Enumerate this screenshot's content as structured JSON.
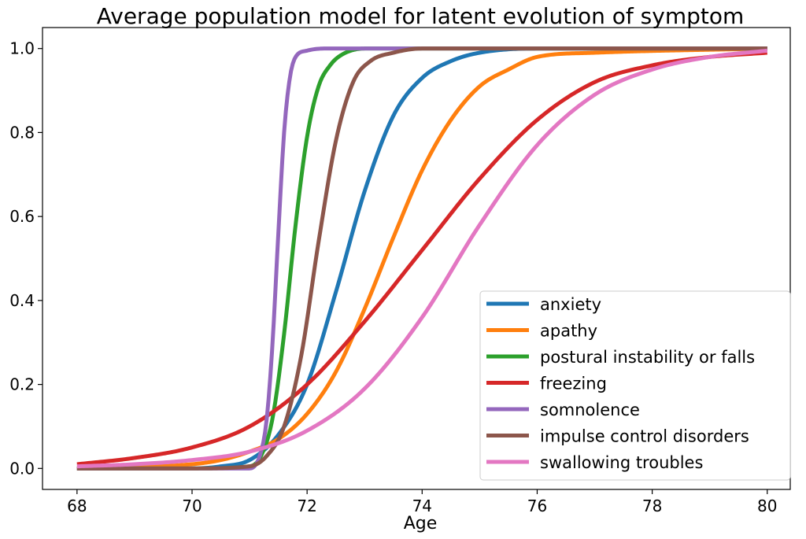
{
  "chart_data": {
    "type": "line",
    "title": "Average population model for latent evolution of symptom",
    "xlabel": "Age",
    "ylabel": "",
    "xlim": [
      67.4,
      80.4
    ],
    "ylim": [
      -0.05,
      1.05
    ],
    "x_ticks": [
      68,
      70,
      72,
      74,
      76,
      78,
      80
    ],
    "x_tick_labels": [
      "68",
      "70",
      "72",
      "74",
      "76",
      "78",
      "80"
    ],
    "y_ticks": [
      0.0,
      0.2,
      0.4,
      0.6,
      0.8,
      1.0
    ],
    "y_tick_labels": [
      "0.0",
      "0.2",
      "0.4",
      "0.6",
      "0.8",
      "1.0"
    ],
    "grid": false,
    "legend_position": "lower-right",
    "x_range": [
      68,
      80
    ],
    "series": [
      {
        "name": "anxiety",
        "color": "#1f77b4",
        "points": [
          [
            68,
            0.0
          ],
          [
            70,
            0.0
          ],
          [
            70.5,
            0.005
          ],
          [
            71,
            0.02
          ],
          [
            71.5,
            0.08
          ],
          [
            72,
            0.2
          ],
          [
            72.5,
            0.42
          ],
          [
            73,
            0.66
          ],
          [
            73.5,
            0.84
          ],
          [
            74,
            0.93
          ],
          [
            74.5,
            0.97
          ],
          [
            75,
            0.99
          ],
          [
            76,
            1.0
          ],
          [
            80,
            1.0
          ]
        ]
      },
      {
        "name": "apathy",
        "color": "#ff7f0e",
        "points": [
          [
            68,
            0.0
          ],
          [
            70,
            0.01
          ],
          [
            70.5,
            0.02
          ],
          [
            71,
            0.04
          ],
          [
            71.5,
            0.07
          ],
          [
            72,
            0.13
          ],
          [
            72.5,
            0.23
          ],
          [
            73,
            0.38
          ],
          [
            73.5,
            0.55
          ],
          [
            74,
            0.71
          ],
          [
            74.5,
            0.83
          ],
          [
            75,
            0.91
          ],
          [
            75.5,
            0.95
          ],
          [
            76,
            0.98
          ],
          [
            77,
            0.99
          ],
          [
            80,
            1.0
          ]
        ]
      },
      {
        "name": "postural instability or falls",
        "color": "#2ca02c",
        "points": [
          [
            68,
            0.0
          ],
          [
            70,
            0.0
          ],
          [
            71,
            0.005
          ],
          [
            71.2,
            0.03
          ],
          [
            71.4,
            0.12
          ],
          [
            71.6,
            0.32
          ],
          [
            71.8,
            0.58
          ],
          [
            72,
            0.79
          ],
          [
            72.2,
            0.91
          ],
          [
            72.4,
            0.96
          ],
          [
            72.6,
            0.985
          ],
          [
            73,
            1.0
          ],
          [
            80,
            1.0
          ]
        ]
      },
      {
        "name": "freezing",
        "color": "#d62728",
        "points": [
          [
            68,
            0.01
          ],
          [
            69,
            0.025
          ],
          [
            70,
            0.05
          ],
          [
            71,
            0.1
          ],
          [
            72,
            0.2
          ],
          [
            73,
            0.35
          ],
          [
            74,
            0.52
          ],
          [
            75,
            0.69
          ],
          [
            76,
            0.83
          ],
          [
            77,
            0.92
          ],
          [
            78,
            0.96
          ],
          [
            79,
            0.98
          ],
          [
            80,
            0.99
          ]
        ]
      },
      {
        "name": "somnolence",
        "color": "#9467bd",
        "points": [
          [
            68,
            0.0
          ],
          [
            71,
            0.0
          ],
          [
            71.2,
            0.04
          ],
          [
            71.3,
            0.12
          ],
          [
            71.4,
            0.3
          ],
          [
            71.5,
            0.56
          ],
          [
            71.6,
            0.8
          ],
          [
            71.7,
            0.93
          ],
          [
            71.8,
            0.98
          ],
          [
            72,
            0.995
          ],
          [
            72.3,
            1.0
          ],
          [
            80,
            1.0
          ]
        ]
      },
      {
        "name": "impulse control disorders",
        "color": "#8c564b",
        "points": [
          [
            68,
            0.0
          ],
          [
            70,
            0.0
          ],
          [
            71,
            0.005
          ],
          [
            71.3,
            0.03
          ],
          [
            71.6,
            0.1
          ],
          [
            71.9,
            0.27
          ],
          [
            72.2,
            0.54
          ],
          [
            72.5,
            0.78
          ],
          [
            72.8,
            0.92
          ],
          [
            73.1,
            0.97
          ],
          [
            73.5,
            0.99
          ],
          [
            74,
            1.0
          ],
          [
            80,
            1.0
          ]
        ]
      },
      {
        "name": "swallowing troubles",
        "color": "#e377c2",
        "points": [
          [
            68,
            0.005
          ],
          [
            69,
            0.01
          ],
          [
            70,
            0.02
          ],
          [
            71,
            0.04
          ],
          [
            72,
            0.09
          ],
          [
            73,
            0.19
          ],
          [
            74,
            0.36
          ],
          [
            75,
            0.58
          ],
          [
            76,
            0.77
          ],
          [
            77,
            0.89
          ],
          [
            78,
            0.95
          ],
          [
            79,
            0.98
          ],
          [
            80,
            0.995
          ]
        ]
      }
    ]
  }
}
